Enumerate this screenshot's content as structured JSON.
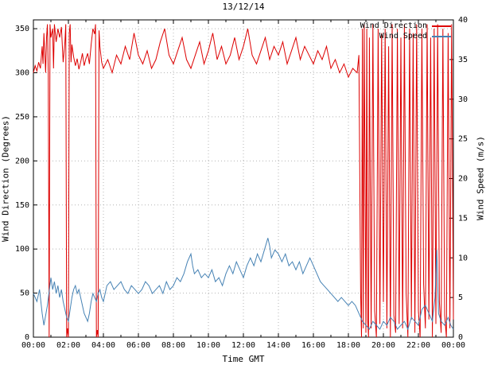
{
  "colors": {
    "background": "#ffffff",
    "border": "#000000",
    "grid": "#b4b4b4",
    "text": "#000000"
  },
  "chart_data": {
    "type": "line",
    "title": "13/12/14",
    "xlabel": "Time GMT",
    "grid": true,
    "legend_position": "top-right",
    "x_axis": {
      "min": 0,
      "max": 24,
      "major_tick_hours": 2,
      "minor_tick_hours": 1,
      "tick_labels": [
        "00:00",
        "02:00",
        "04:00",
        "06:00",
        "08:00",
        "10:00",
        "12:00",
        "14:00",
        "16:00",
        "18:00",
        "20:00",
        "22:00",
        "00:00"
      ]
    },
    "y_left": {
      "label": "Wind Direction (Degrees)",
      "min": 0,
      "max": 360,
      "ticks": [
        0,
        50,
        100,
        150,
        200,
        250,
        300,
        350
      ]
    },
    "y_right": {
      "label": "Wind Speed (m/s)",
      "min": 0,
      "max": 40,
      "ticks": [
        0,
        5,
        10,
        15,
        20,
        25,
        30,
        35,
        40
      ]
    },
    "series": [
      {
        "name": "Wind Direction",
        "axis": "left",
        "color": "#dd0000",
        "points": [
          [
            0,
            300
          ],
          [
            0.1,
            308
          ],
          [
            0.2,
            302
          ],
          [
            0.3,
            312
          ],
          [
            0.4,
            305
          ],
          [
            0.5,
            330
          ],
          [
            0.55,
            310
          ],
          [
            0.6,
            345
          ],
          [
            0.7,
            300
          ],
          [
            0.75,
            340
          ],
          [
            0.8,
            355
          ],
          [
            0.85,
            300
          ],
          [
            0.9,
            0
          ],
          [
            0.95,
            355
          ],
          [
            1.0,
            340
          ],
          [
            1.1,
            350
          ],
          [
            1.15,
            305
          ],
          [
            1.2,
            355
          ],
          [
            1.3,
            335
          ],
          [
            1.4,
            350
          ],
          [
            1.5,
            340
          ],
          [
            1.6,
            352
          ],
          [
            1.7,
            312
          ],
          [
            1.8,
            335
          ],
          [
            1.85,
            355
          ],
          [
            1.9,
            0
          ],
          [
            1.95,
            10
          ],
          [
            2.0,
            0
          ],
          [
            2.05,
            345
          ],
          [
            2.1,
            355
          ],
          [
            2.15,
            312
          ],
          [
            2.2,
            332
          ],
          [
            2.3,
            318
          ],
          [
            2.4,
            308
          ],
          [
            2.5,
            316
          ],
          [
            2.6,
            304
          ],
          [
            2.7,
            312
          ],
          [
            2.8,
            322
          ],
          [
            2.9,
            308
          ],
          [
            3.0,
            316
          ],
          [
            3.1,
            322
          ],
          [
            3.2,
            310
          ],
          [
            3.3,
            332
          ],
          [
            3.4,
            350
          ],
          [
            3.5,
            344
          ],
          [
            3.55,
            355
          ],
          [
            3.6,
            0
          ],
          [
            3.65,
            8
          ],
          [
            3.7,
            0
          ],
          [
            3.75,
            348
          ],
          [
            3.8,
            330
          ],
          [
            3.9,
            312
          ],
          [
            4.0,
            305
          ],
          [
            4.25,
            315
          ],
          [
            4.5,
            300
          ],
          [
            4.75,
            320
          ],
          [
            5.0,
            310
          ],
          [
            5.25,
            330
          ],
          [
            5.5,
            315
          ],
          [
            5.75,
            345
          ],
          [
            6.0,
            320
          ],
          [
            6.25,
            310
          ],
          [
            6.5,
            325
          ],
          [
            6.75,
            305
          ],
          [
            7.0,
            315
          ],
          [
            7.25,
            335
          ],
          [
            7.5,
            350
          ],
          [
            7.75,
            320
          ],
          [
            8.0,
            310
          ],
          [
            8.25,
            325
          ],
          [
            8.5,
            340
          ],
          [
            8.75,
            315
          ],
          [
            9.0,
            305
          ],
          [
            9.25,
            320
          ],
          [
            9.5,
            335
          ],
          [
            9.75,
            310
          ],
          [
            10.0,
            325
          ],
          [
            10.25,
            345
          ],
          [
            10.5,
            315
          ],
          [
            10.75,
            330
          ],
          [
            11.0,
            310
          ],
          [
            11.25,
            320
          ],
          [
            11.5,
            340
          ],
          [
            11.75,
            315
          ],
          [
            12.0,
            330
          ],
          [
            12.25,
            350
          ],
          [
            12.5,
            320
          ],
          [
            12.75,
            310
          ],
          [
            13.0,
            325
          ],
          [
            13.25,
            340
          ],
          [
            13.5,
            315
          ],
          [
            13.75,
            330
          ],
          [
            14.0,
            320
          ],
          [
            14.25,
            335
          ],
          [
            14.5,
            310
          ],
          [
            14.75,
            325
          ],
          [
            15.0,
            340
          ],
          [
            15.25,
            315
          ],
          [
            15.5,
            330
          ],
          [
            15.75,
            320
          ],
          [
            16.0,
            310
          ],
          [
            16.25,
            325
          ],
          [
            16.5,
            315
          ],
          [
            16.75,
            330
          ],
          [
            17.0,
            305
          ],
          [
            17.25,
            315
          ],
          [
            17.5,
            300
          ],
          [
            17.75,
            310
          ],
          [
            18.0,
            295
          ],
          [
            18.25,
            305
          ],
          [
            18.5,
            300
          ],
          [
            18.6,
            320
          ],
          [
            18.7,
            50
          ],
          [
            18.75,
            0
          ],
          [
            18.8,
            350
          ],
          [
            18.85,
            10
          ],
          [
            18.9,
            355
          ],
          [
            19.0,
            5
          ],
          [
            19.05,
            350
          ],
          [
            19.1,
            20
          ],
          [
            19.15,
            0
          ],
          [
            19.2,
            340
          ],
          [
            19.3,
            10
          ],
          [
            19.4,
            355
          ],
          [
            19.5,
            30
          ],
          [
            19.6,
            0
          ],
          [
            19.7,
            350
          ],
          [
            19.8,
            15
          ],
          [
            19.9,
            345
          ],
          [
            20.0,
            40
          ],
          [
            20.1,
            350
          ],
          [
            20.2,
            10
          ],
          [
            20.3,
            330
          ],
          [
            20.4,
            0
          ],
          [
            20.5,
            355
          ],
          [
            20.6,
            25
          ],
          [
            20.7,
            5
          ],
          [
            20.8,
            350
          ],
          [
            20.9,
            15
          ],
          [
            21.0,
            340
          ],
          [
            21.1,
            10
          ],
          [
            21.2,
            355
          ],
          [
            21.3,
            50
          ],
          [
            21.4,
            0
          ],
          [
            21.5,
            350
          ],
          [
            21.6,
            20
          ],
          [
            21.7,
            345
          ],
          [
            21.8,
            5
          ],
          [
            21.9,
            355
          ],
          [
            22.0,
            30
          ],
          [
            22.1,
            0
          ],
          [
            22.2,
            350
          ],
          [
            22.3,
            60
          ],
          [
            22.4,
            10
          ],
          [
            22.5,
            355
          ],
          [
            22.6,
            20
          ],
          [
            22.7,
            340
          ],
          [
            22.8,
            0
          ],
          [
            22.9,
            350
          ],
          [
            23.0,
            15
          ],
          [
            23.1,
            355
          ],
          [
            23.2,
            40
          ],
          [
            23.3,
            5
          ],
          [
            23.4,
            350
          ],
          [
            23.5,
            25
          ],
          [
            23.6,
            0
          ],
          [
            23.7,
            345
          ],
          [
            23.8,
            10
          ],
          [
            23.9,
            355
          ],
          [
            24.0,
            20
          ]
        ]
      },
      {
        "name": "Wind Speed",
        "axis": "right",
        "color": "#4682b4",
        "points": [
          [
            0,
            5.5
          ],
          [
            0.2,
            4.5
          ],
          [
            0.35,
            6
          ],
          [
            0.5,
            3
          ],
          [
            0.6,
            1.5
          ],
          [
            0.8,
            4
          ],
          [
            1.0,
            7.5
          ],
          [
            1.1,
            6
          ],
          [
            1.2,
            7
          ],
          [
            1.3,
            5.5
          ],
          [
            1.4,
            6.5
          ],
          [
            1.5,
            5
          ],
          [
            1.6,
            6
          ],
          [
            1.7,
            4.5
          ],
          [
            1.8,
            3.5
          ],
          [
            1.9,
            2.5
          ],
          [
            2.0,
            2
          ],
          [
            2.1,
            3.5
          ],
          [
            2.2,
            5
          ],
          [
            2.3,
            6
          ],
          [
            2.4,
            6.5
          ],
          [
            2.5,
            5.5
          ],
          [
            2.6,
            6
          ],
          [
            2.7,
            5
          ],
          [
            2.8,
            4
          ],
          [
            2.9,
            3
          ],
          [
            3.0,
            2.5
          ],
          [
            3.1,
            2
          ],
          [
            3.2,
            3
          ],
          [
            3.3,
            4.5
          ],
          [
            3.4,
            5.5
          ],
          [
            3.5,
            5
          ],
          [
            3.6,
            4.5
          ],
          [
            3.7,
            5.5
          ],
          [
            3.8,
            6
          ],
          [
            3.9,
            5
          ],
          [
            4.0,
            4.5
          ],
          [
            4.2,
            6.5
          ],
          [
            4.4,
            7
          ],
          [
            4.6,
            6
          ],
          [
            4.8,
            6.5
          ],
          [
            5.0,
            7
          ],
          [
            5.2,
            6
          ],
          [
            5.4,
            5.5
          ],
          [
            5.6,
            6.5
          ],
          [
            5.8,
            6
          ],
          [
            6.0,
            5.5
          ],
          [
            6.2,
            6
          ],
          [
            6.4,
            7
          ],
          [
            6.6,
            6.5
          ],
          [
            6.8,
            5.5
          ],
          [
            7.0,
            6
          ],
          [
            7.2,
            6.5
          ],
          [
            7.4,
            5.5
          ],
          [
            7.6,
            7
          ],
          [
            7.8,
            6
          ],
          [
            8.0,
            6.5
          ],
          [
            8.2,
            7.5
          ],
          [
            8.4,
            7
          ],
          [
            8.6,
            8
          ],
          [
            8.8,
            9.5
          ],
          [
            9.0,
            10.5
          ],
          [
            9.1,
            9
          ],
          [
            9.2,
            8
          ],
          [
            9.4,
            8.5
          ],
          [
            9.6,
            7.5
          ],
          [
            9.8,
            8
          ],
          [
            10.0,
            7.5
          ],
          [
            10.2,
            8.5
          ],
          [
            10.4,
            7
          ],
          [
            10.6,
            7.5
          ],
          [
            10.8,
            6.5
          ],
          [
            11.0,
            8
          ],
          [
            11.2,
            9
          ],
          [
            11.4,
            8
          ],
          [
            11.6,
            9.5
          ],
          [
            11.8,
            8.5
          ],
          [
            12.0,
            7.5
          ],
          [
            12.2,
            9
          ],
          [
            12.4,
            10
          ],
          [
            12.6,
            9
          ],
          [
            12.8,
            10.5
          ],
          [
            13.0,
            9.5
          ],
          [
            13.2,
            11
          ],
          [
            13.4,
            12.5
          ],
          [
            13.5,
            11.5
          ],
          [
            13.6,
            10
          ],
          [
            13.8,
            11
          ],
          [
            14.0,
            10.5
          ],
          [
            14.2,
            9.5
          ],
          [
            14.4,
            10.5
          ],
          [
            14.6,
            9
          ],
          [
            14.8,
            9.5
          ],
          [
            15.0,
            8.5
          ],
          [
            15.2,
            9.5
          ],
          [
            15.4,
            8
          ],
          [
            15.6,
            9
          ],
          [
            15.8,
            10
          ],
          [
            16.0,
            9
          ],
          [
            16.2,
            8
          ],
          [
            16.4,
            7
          ],
          [
            16.6,
            6.5
          ],
          [
            16.8,
            6
          ],
          [
            17.0,
            5.5
          ],
          [
            17.2,
            5
          ],
          [
            17.4,
            4.5
          ],
          [
            17.6,
            5
          ],
          [
            17.8,
            4.5
          ],
          [
            18.0,
            4
          ],
          [
            18.2,
            4.5
          ],
          [
            18.4,
            4
          ],
          [
            18.6,
            3
          ],
          [
            18.8,
            2
          ],
          [
            19.0,
            1.5
          ],
          [
            19.2,
            1
          ],
          [
            19.4,
            2
          ],
          [
            19.6,
            1.5
          ],
          [
            19.8,
            1
          ],
          [
            20.0,
            2
          ],
          [
            20.2,
            1.5
          ],
          [
            20.4,
            2.5
          ],
          [
            20.6,
            2
          ],
          [
            20.8,
            1
          ],
          [
            21.0,
            1.5
          ],
          [
            21.2,
            2
          ],
          [
            21.4,
            1
          ],
          [
            21.6,
            2.5
          ],
          [
            21.8,
            2
          ],
          [
            22.0,
            1.5
          ],
          [
            22.2,
            3.5
          ],
          [
            22.4,
            4
          ],
          [
            22.6,
            3
          ],
          [
            22.8,
            2
          ],
          [
            22.95,
            5
          ],
          [
            23.05,
            11
          ],
          [
            23.15,
            3
          ],
          [
            23.3,
            2
          ],
          [
            23.5,
            1.5
          ],
          [
            23.7,
            2.5
          ],
          [
            23.85,
            1.5
          ],
          [
            24.0,
            1
          ]
        ]
      }
    ]
  }
}
